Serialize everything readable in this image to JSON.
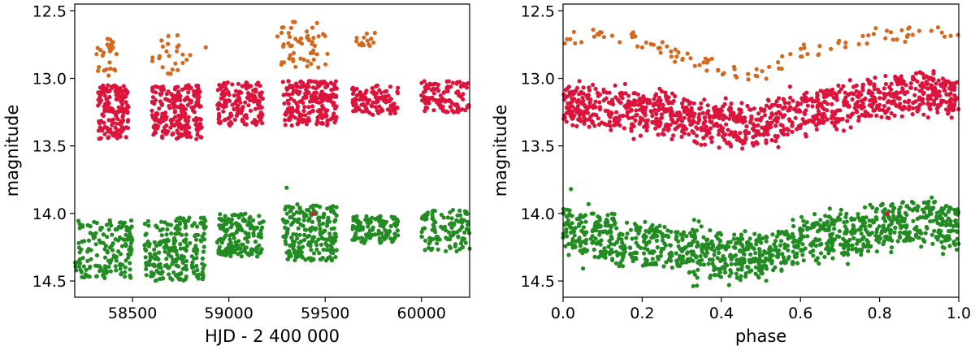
{
  "colors": {
    "orange": "#d2691e",
    "red": "#dc143c",
    "green": "#228b22"
  },
  "chart_data": [
    {
      "type": "scatter",
      "xlabel": "HJD - 2 400 000",
      "ylabel": "magnitude",
      "xlim": [
        58200,
        60250
      ],
      "ylim": [
        14.62,
        12.45
      ],
      "y_inverted": true,
      "xticks": [
        58500,
        59000,
        59500,
        60000
      ],
      "xtick_labels": [
        "58500",
        "59000",
        "59500",
        "60000"
      ],
      "yticks": [
        12.5,
        13.0,
        13.5,
        14.0,
        14.5
      ],
      "ytick_labels": [
        "12.5",
        "13.0",
        "13.5",
        "14.0",
        "14.5"
      ],
      "grid": false,
      "series": [
        {
          "color": "#d2691e",
          "segments": [
            [
              58300,
              58420,
              12.68,
              12.98,
              26
            ],
            [
              58600,
              58800,
              12.68,
              12.98,
              24
            ],
            [
              58880,
              58880,
              12.75,
              12.78,
              1
            ],
            [
              59250,
              59520,
              12.58,
              12.92,
              55
            ],
            [
              59660,
              59760,
              12.66,
              12.76,
              15
            ]
          ]
        },
        {
          "color": "#dc143c",
          "segments": [
            [
              58320,
              58480,
              13.05,
              13.45,
              150
            ],
            [
              58600,
              58860,
              13.05,
              13.45,
              230
            ],
            [
              58940,
              59180,
              13.03,
              13.35,
              160
            ],
            [
              59280,
              59560,
              13.02,
              13.35,
              220
            ],
            [
              59640,
              59880,
              13.05,
              13.27,
              110
            ],
            [
              60000,
              60250,
              13.02,
              13.25,
              110
            ]
          ]
        },
        {
          "color": "#228b22",
          "segments": [
            [
              58200,
              58500,
              14.05,
              14.48,
              160
            ],
            [
              58560,
              58880,
              14.03,
              14.5,
              230
            ],
            [
              58940,
              59180,
              14.0,
              14.32,
              160
            ],
            [
              59280,
              59560,
              13.93,
              14.35,
              220
            ],
            [
              59640,
              59880,
              14.02,
              14.22,
              110
            ],
            [
              60000,
              60250,
              13.97,
              14.28,
              110
            ]
          ]
        }
      ],
      "extra_points": [
        {
          "x": 59300,
          "y": 13.81,
          "color": "#228b22"
        },
        {
          "x": 59440,
          "y": 14.0,
          "color": "#dc143c"
        }
      ]
    },
    {
      "type": "scatter",
      "xlabel": "phase",
      "ylabel": "magnitude",
      "xlim": [
        0.0,
        1.0
      ],
      "ylim": [
        14.62,
        12.45
      ],
      "y_inverted": true,
      "xticks": [
        0.0,
        0.2,
        0.4,
        0.6,
        0.8,
        1.0
      ],
      "xtick_labels": [
        "0.0",
        "0.2",
        "0.4",
        "0.6",
        "0.8",
        "1.0"
      ],
      "yticks": [
        12.5,
        13.0,
        13.5,
        14.0,
        14.5
      ],
      "ytick_labels": [
        "12.5",
        "13.0",
        "13.5",
        "14.0",
        "14.5"
      ],
      "grid": false,
      "series": [
        {
          "color": "#d2691e",
          "curve": [
            [
              0.0,
              12.72
            ],
            [
              0.1,
              12.67
            ],
            [
              0.2,
              12.72
            ],
            [
              0.3,
              12.85
            ],
            [
              0.4,
              12.92
            ],
            [
              0.46,
              12.98
            ],
            [
              0.5,
              12.97
            ],
            [
              0.6,
              12.82
            ],
            [
              0.7,
              12.75
            ],
            [
              0.8,
              12.7
            ],
            [
              0.9,
              12.66
            ],
            [
              1.0,
              12.68
            ]
          ],
          "spread": 0.07,
          "n": 110
        },
        {
          "color": "#dc143c",
          "curve": [
            [
              0.0,
              13.18
            ],
            [
              0.1,
              13.22
            ],
            [
              0.2,
              13.25
            ],
            [
              0.3,
              13.3
            ],
            [
              0.4,
              13.34
            ],
            [
              0.5,
              13.35
            ],
            [
              0.6,
              13.26
            ],
            [
              0.7,
              13.2
            ],
            [
              0.8,
              13.13
            ],
            [
              0.9,
              13.1
            ],
            [
              1.0,
              13.15
            ]
          ],
          "spread": 0.2,
          "n": 1100
        },
        {
          "color": "#228b22",
          "curve": [
            [
              0.0,
              14.12
            ],
            [
              0.1,
              14.17
            ],
            [
              0.2,
              14.22
            ],
            [
              0.3,
              14.28
            ],
            [
              0.4,
              14.32
            ],
            [
              0.5,
              14.32
            ],
            [
              0.6,
              14.22
            ],
            [
              0.7,
              14.16
            ],
            [
              0.8,
              14.1
            ],
            [
              0.9,
              14.05
            ],
            [
              1.0,
              14.12
            ]
          ],
          "spread": 0.22,
          "n": 1100
        }
      ],
      "extra_points": [
        {
          "x": 0.02,
          "y": 13.82,
          "color": "#228b22"
        },
        {
          "x": 0.82,
          "y": 14.0,
          "color": "#dc143c"
        }
      ]
    }
  ]
}
